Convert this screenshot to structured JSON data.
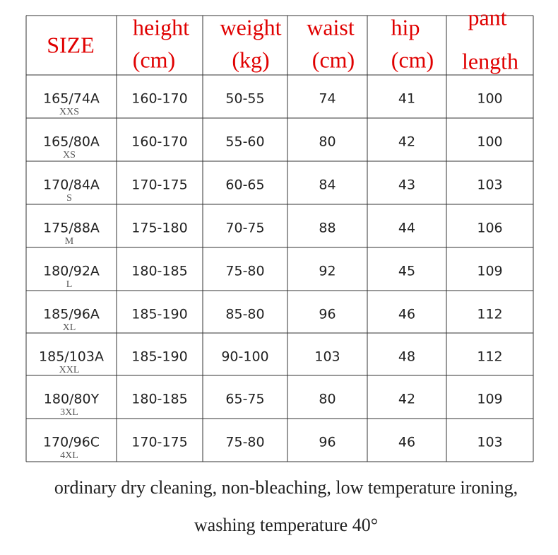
{
  "table": {
    "header": [
      [
        "SIZE"
      ],
      [
        "height",
        "(cm)"
      ],
      [
        "weight",
        "(kg)"
      ],
      [
        "waist",
        "(cm)"
      ],
      [
        "hip",
        "(cm)"
      ],
      [
        "pant",
        "length"
      ]
    ],
    "rows": [
      {
        "size": "165/74A",
        "code": "XXS",
        "cells": [
          "160-170",
          "50-55",
          "74",
          "41",
          "100"
        ]
      },
      {
        "size": "165/80A",
        "code": "XS",
        "cells": [
          "160-170",
          "55-60",
          "80",
          "42",
          "100"
        ]
      },
      {
        "size": "170/84A",
        "code": "S",
        "cells": [
          "170-175",
          "60-65",
          "84",
          "43",
          "103"
        ]
      },
      {
        "size": "175/88A",
        "code": "M",
        "cells": [
          "175-180",
          "70-75",
          "88",
          "44",
          "106"
        ]
      },
      {
        "size": "180/92A",
        "code": "L",
        "cells": [
          "180-185",
          "75-80",
          "92",
          "45",
          "109"
        ]
      },
      {
        "size": "185/96A",
        "code": "XL",
        "cells": [
          "185-190",
          "85-80",
          "96",
          "46",
          "112"
        ]
      },
      {
        "size": "185/103A",
        "code": "XXL",
        "cells": [
          "185-190",
          "90-100",
          "103",
          "48",
          "112"
        ]
      },
      {
        "size": "180/80Y",
        "code": "3XL",
        "cells": [
          "180-185",
          "65-75",
          "80",
          "42",
          "109"
        ]
      },
      {
        "size": "170/96C",
        "code": "4XL",
        "cells": [
          "170-175",
          "75-80",
          "96",
          "46",
          "103"
        ]
      }
    ]
  },
  "footer": [
    "ordinary dry cleaning, non-bleaching, low temperature ironing,",
    "washing temperature 40°"
  ]
}
